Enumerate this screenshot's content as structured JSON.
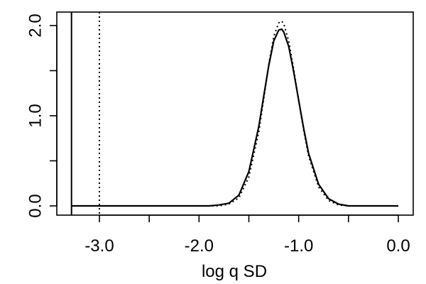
{
  "chart_data": {
    "type": "line",
    "title": "",
    "xlabel": "log q SD",
    "ylabel": "",
    "xlim": [
      -3.3,
      0.0
    ],
    "ylim": [
      0.0,
      2.0
    ],
    "x_ticks": [
      -3.0,
      -2.5,
      -2.0,
      -1.5,
      -1.0,
      -0.5,
      0.0
    ],
    "x_tick_labels": [
      "-3.0",
      "",
      "-2.0",
      "",
      "-1.0",
      "",
      "0.0"
    ],
    "y_ticks": [
      0.0,
      0.5,
      1.0,
      1.5,
      2.0
    ],
    "y_tick_labels": [
      "0.0",
      "",
      "1.0",
      "",
      "2.0"
    ],
    "grid": false,
    "legend": "none",
    "series": [
      {
        "style": "solid",
        "color": "#000000",
        "x": [
          -3.28,
          -2.0,
          -1.9,
          -1.8,
          -1.7,
          -1.6,
          -1.5,
          -1.4,
          -1.35,
          -1.3,
          -1.25,
          -1.2,
          -1.17,
          -1.15,
          -1.1,
          -1.05,
          -1.0,
          -0.95,
          -0.9,
          -0.8,
          -0.7,
          -0.6,
          -0.5,
          -0.4,
          0.0
        ],
        "y": [
          0.0,
          0.0,
          0.0,
          0.01,
          0.03,
          0.12,
          0.38,
          0.88,
          1.22,
          1.56,
          1.83,
          1.95,
          1.96,
          1.93,
          1.77,
          1.49,
          1.17,
          0.86,
          0.58,
          0.24,
          0.08,
          0.02,
          0.0,
          0.0,
          0.0
        ]
      },
      {
        "style": "dotted",
        "color": "#000000",
        "x": [
          -3.28,
          -2.0,
          -1.9,
          -1.8,
          -1.7,
          -1.6,
          -1.5,
          -1.4,
          -1.35,
          -1.3,
          -1.25,
          -1.2,
          -1.17,
          -1.15,
          -1.1,
          -1.05,
          -1.0,
          -0.95,
          -0.9,
          -0.8,
          -0.7,
          -0.6,
          -0.5,
          -0.4,
          0.0
        ],
        "y": [
          0.0,
          0.0,
          0.0,
          0.0,
          0.02,
          0.09,
          0.32,
          0.82,
          1.19,
          1.57,
          1.88,
          2.03,
          2.05,
          2.02,
          1.83,
          1.52,
          1.17,
          0.84,
          0.55,
          0.21,
          0.06,
          0.01,
          0.0,
          0.0,
          0.0
        ]
      }
    ],
    "vlines": [
      {
        "x": -3.28,
        "style": "solid",
        "color": "#000000"
      },
      {
        "x": -3.0,
        "style": "dotted",
        "color": "#000000"
      }
    ]
  }
}
